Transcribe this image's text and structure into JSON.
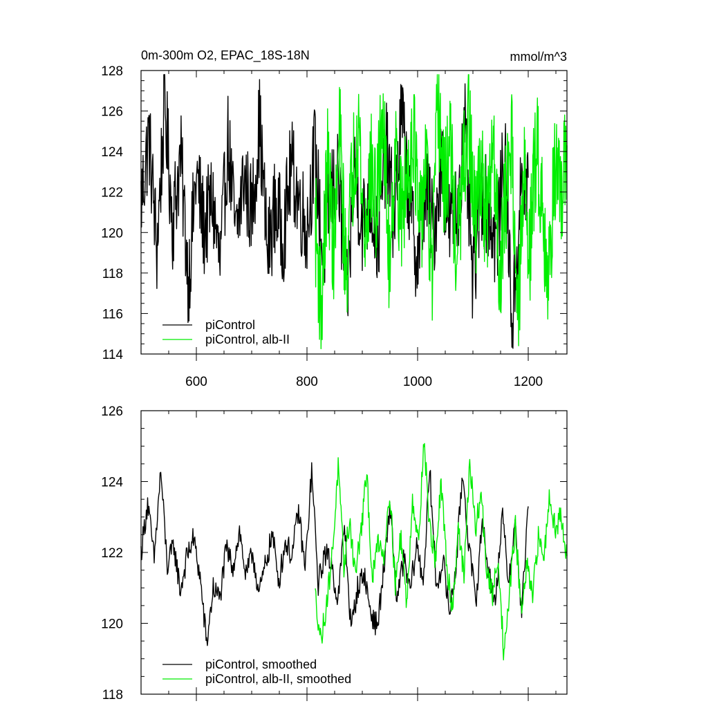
{
  "chart_data": [
    {
      "type": "line",
      "title": "0m-300m O2, EPAC_18S-18N",
      "units": "mmol/m^3",
      "xlim": [
        500,
        1270
      ],
      "ylim": [
        114,
        128
      ],
      "xticks": [
        600,
        800,
        1000,
        1200
      ],
      "xtick_labels": [
        "600",
        "800",
        "1000",
        "1200"
      ],
      "yticks": [
        114,
        116,
        118,
        120,
        122,
        124,
        126,
        128
      ],
      "ytick_labels": [
        "114",
        "116",
        "118",
        "120",
        "122",
        "124",
        "126",
        "128"
      ],
      "legend_position": "bottom-left",
      "series": [
        {
          "name": "piControl",
          "color": "#000000",
          "x_start": 500,
          "x_end": 1200,
          "mean": 121.8,
          "amplitude": 1.75,
          "values_sampled": [
            121.5,
            124.8,
            119.2,
            126.4,
            120.5,
            123.8,
            117.6,
            122.9,
            120.1,
            121.7,
            118.3,
            124.6,
            119.6,
            122.8,
            120.9,
            125.4,
            118.9,
            121.4,
            119.8,
            123.3,
            121.6,
            120.2,
            124.1,
            118.7,
            121.9,
            122.6,
            116.3,
            123.1,
            120.4,
            121.8,
            119.5,
            124.2,
            120.7,
            125.8,
            121.3,
            118.6,
            122.4,
            119.9,
            123.7,
            120.3,
            121.1,
            124.9,
            117.2,
            122.1,
            121.0,
            119.3,
            124.0,
            115.5,
            121.6,
            122.7
          ]
        },
        {
          "name": "piControl, alb-II",
          "color": "#00ee00",
          "x_start": 815,
          "x_end": 1270,
          "mean": 122.1,
          "amplitude": 2.1,
          "values_sampled": [
            120.4,
            116.2,
            123.4,
            119.1,
            124.8,
            117.8,
            122.6,
            125.9,
            119.4,
            123.2,
            121.1,
            126.2,
            118.5,
            124.1,
            120.7,
            122.9,
            125.3,
            119.6,
            123.8,
            117.4,
            126.7,
            121.9,
            124.4,
            118.8,
            122.3,
            125.6,
            120.2,
            123.5,
            119.9,
            124.9,
            118.1,
            121.4,
            125.1,
            115.2,
            122.8,
            119.3,
            124.5,
            121.6,
            117.3,
            123.7,
            120.9,
            124.3
          ]
        }
      ],
      "legend": [
        "piControl",
        "piControl, alb-II"
      ]
    },
    {
      "type": "line",
      "title": "",
      "xlim": [
        500,
        1270
      ],
      "ylim": [
        118,
        126
      ],
      "xticks": [
        600,
        800,
        1000,
        1200
      ],
      "yticks": [
        118,
        120,
        122,
        124,
        126
      ],
      "ytick_labels": [
        "118",
        "120",
        "122",
        "124",
        "126"
      ],
      "legend_position": "bottom-left",
      "series": [
        {
          "name": "piControl, smoothed",
          "color": "#000000",
          "x_start": 500,
          "x_end": 1200,
          "values_sampled": [
            122.0,
            123.4,
            121.8,
            124.3,
            121.6,
            122.2,
            120.9,
            121.9,
            122.4,
            121.3,
            119.4,
            121.0,
            120.7,
            122.1,
            121.6,
            122.6,
            121.3,
            122.0,
            120.8,
            121.7,
            122.5,
            121.2,
            122.3,
            121.9,
            123.2,
            121.5,
            124.3,
            121.1,
            122.0,
            121.7,
            120.6,
            122.8,
            119.8,
            121.0,
            121.4,
            120.3,
            119.9,
            121.5,
            123.3,
            120.6,
            121.8,
            120.9,
            122.2,
            121.2,
            124.3,
            121.0,
            121.8,
            120.3,
            121.6,
            124.3,
            122.1,
            120.6,
            122.9,
            121.4,
            120.5,
            123.1,
            121.2,
            122.8,
            120.3,
            123.3
          ]
        },
        {
          "name": "piControl, alb-II, smoothed",
          "color": "#00ee00",
          "x_start": 815,
          "x_end": 1270,
          "values_sampled": [
            120.8,
            119.5,
            120.6,
            122.0,
            124.4,
            121.6,
            122.9,
            121.4,
            122.6,
            124.2,
            121.2,
            122.4,
            121.9,
            123.8,
            121.1,
            122.5,
            120.5,
            123.6,
            122.2,
            125.2,
            122.7,
            121.8,
            123.9,
            121.6,
            120.4,
            122.8,
            121.3,
            124.6,
            122.6,
            123.7,
            121.4,
            120.8,
            121.9,
            119.0,
            121.0,
            122.7,
            120.3,
            121.6,
            120.7,
            122.4,
            121.9,
            123.7,
            122.6,
            123.1,
            121.9
          ]
        }
      ],
      "legend": [
        "piControl, smoothed",
        "piControl, alb-II, smoothed"
      ]
    }
  ]
}
